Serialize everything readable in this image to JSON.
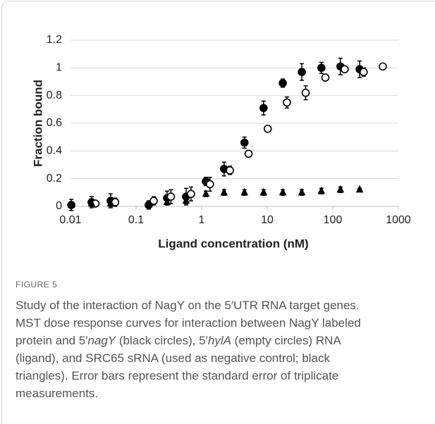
{
  "chart_data": {
    "type": "scatter",
    "x_label": "Ligand concentration (nM)",
    "y_label": "Fraction bound",
    "log_x": true,
    "grid": true,
    "xlim": [
      0.01,
      1000
    ],
    "xticks": [
      0.01,
      0.1,
      1,
      10,
      100,
      1000
    ],
    "ylim": [
      0,
      1.2
    ],
    "yticks": [
      0,
      0.2,
      0.4,
      0.6,
      0.8,
      1,
      1.2
    ],
    "series": [
      {
        "color": "#000000",
        "marker": "circle",
        "filled": true,
        "x": [
          0.0103,
          0.021,
          0.041,
          0.156,
          0.297,
          0.58,
          1.16,
          2.2,
          4.5,
          8.8,
          17.3,
          33.7,
          67,
          131,
          257
        ],
        "values": [
          0.01,
          0.03,
          0.04,
          0.01,
          0.06,
          0.07,
          0.18,
          0.27,
          0.46,
          0.71,
          0.89,
          0.97,
          1.0,
          1.01,
          0.99
        ],
        "errors": [
          0.04,
          0.04,
          0.05,
          0.03,
          0.05,
          0.06,
          0.03,
          0.05,
          0.04,
          0.05,
          0.03,
          0.06,
          0.04,
          0.06,
          0.06
        ]
      },
      {
        "color": "#000000",
        "marker": "circle",
        "filled": false,
        "x": [
          0.024,
          0.048,
          0.186,
          0.34,
          0.69,
          1.34,
          2.7,
          5.2,
          10.2,
          20,
          38.6,
          77,
          152,
          296,
          580
        ],
        "values": [
          0.02,
          0.03,
          0.04,
          0.07,
          0.09,
          0.16,
          0.26,
          0.38,
          0.56,
          0.75,
          0.82,
          0.93,
          0.99,
          0.97,
          1.01
        ],
        "errors": [
          0.02,
          0.03,
          0.03,
          0.05,
          0.05,
          0.05,
          0.03,
          0.02,
          0.02,
          0.04,
          0.05,
          0.02,
          0.02,
          0.03,
          0.02
        ]
      },
      {
        "color": "#000000",
        "marker": "triangle",
        "filled": true,
        "x": [
          0.0103,
          0.021,
          0.041,
          0.156,
          0.297,
          0.58,
          1.16,
          2.2,
          4.5,
          8.8,
          17.3,
          33.7,
          67,
          131,
          257
        ],
        "values": [
          0.01,
          0.02,
          0.02,
          0.01,
          0.03,
          0.04,
          0.09,
          0.1,
          0.1,
          0.1,
          0.1,
          0.1,
          0.11,
          0.12,
          0.12
        ],
        "errors": [
          0.02,
          0.02,
          0.02,
          0.02,
          0.02,
          0.02,
          0.02,
          0.02,
          0.02,
          0.02,
          0.02,
          0.02,
          0.02,
          0.02,
          0.01
        ]
      }
    ]
  },
  "caption": {
    "label": "FIGURE 5",
    "lines": [
      [
        {
          "text": "Study of the interaction of NagY on the 5′UTR RNA target genes."
        }
      ],
      [
        {
          "text": "MST dose response curves for interaction between NagY labeled"
        }
      ],
      [
        {
          "text": "protein and 5′"
        },
        {
          "text": "nagY",
          "italic": true
        },
        {
          "text": " (black circles), 5′"
        },
        {
          "text": "hylA",
          "italic": true
        },
        {
          "text": " (empty circles) RNA"
        }
      ],
      [
        {
          "text": "(ligand), and SRC65 sRNA (used as negative control; black"
        }
      ],
      [
        {
          "text": "triangles). Error bars represent the standard error of triplicate"
        }
      ],
      [
        {
          "text": "measurements."
        }
      ]
    ]
  }
}
